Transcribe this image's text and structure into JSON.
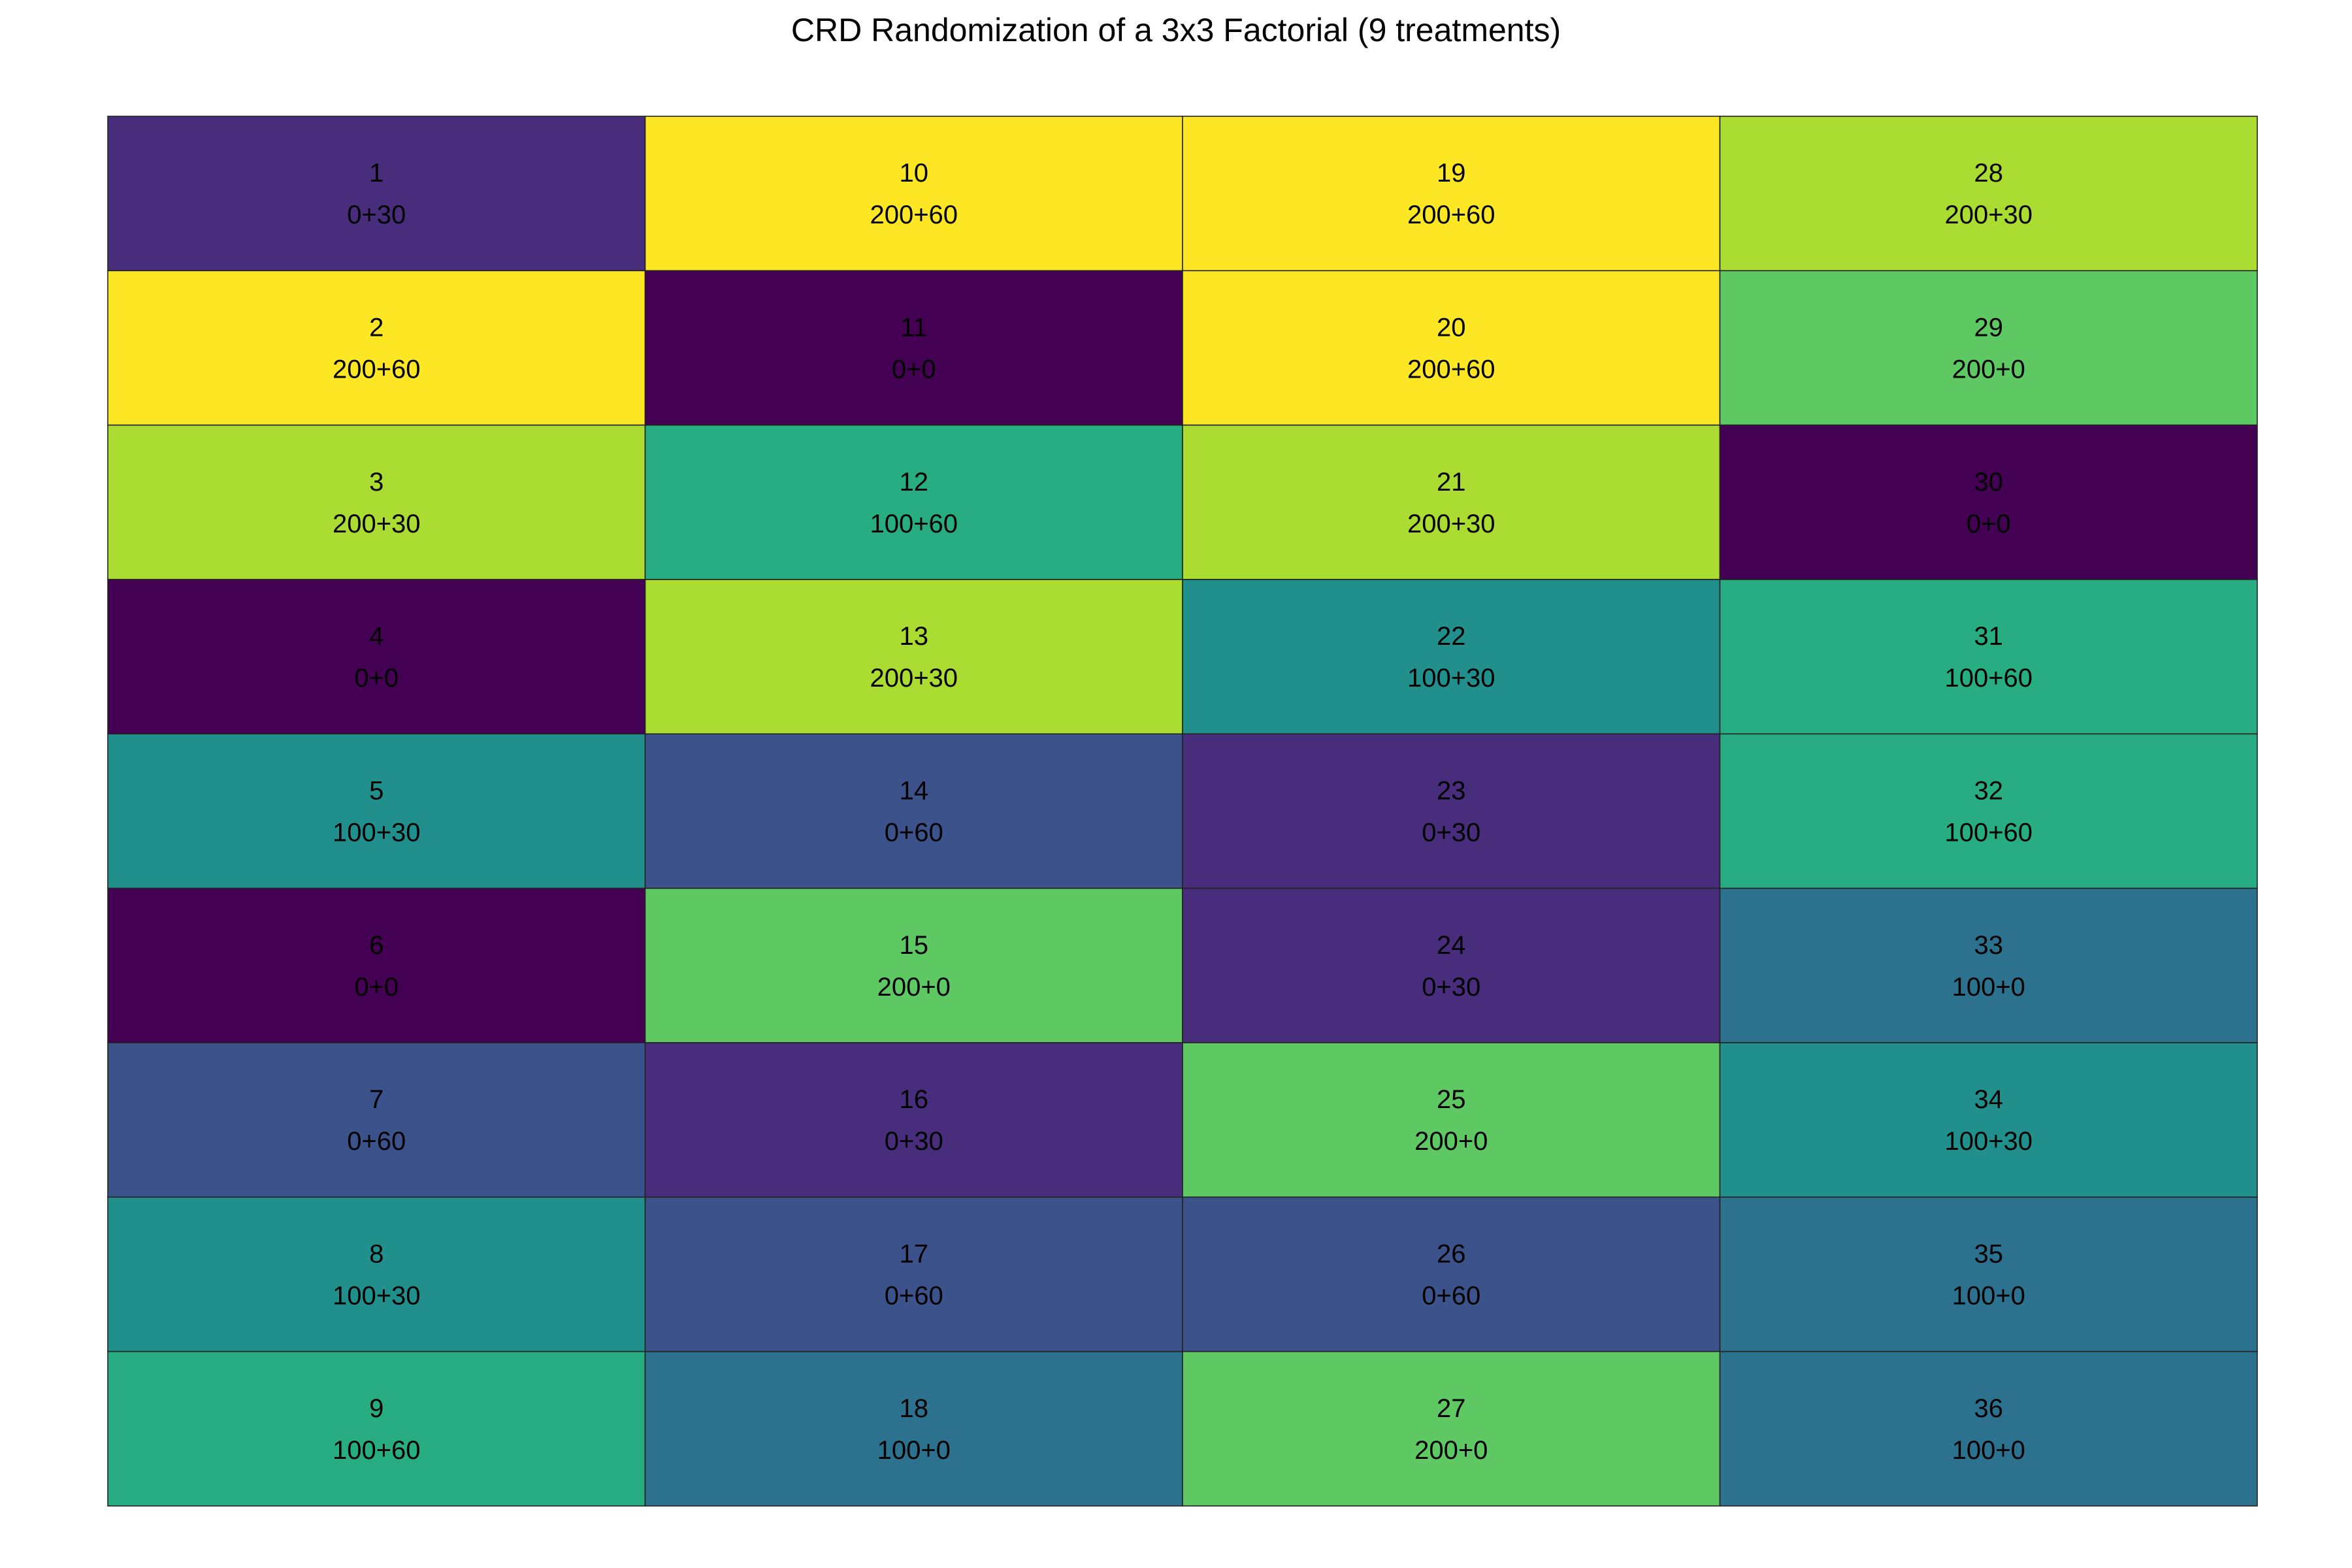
{
  "chart_data": {
    "type": "heatmap",
    "title": "CRD Randomization of a 3x3 Factorial (9 treatments)",
    "xlabel": "",
    "ylabel": "",
    "grid": false,
    "legend": "none",
    "n_rows": 9,
    "n_cols": 4,
    "fill_order": "column-major, top-to-bottom",
    "treatment_colors": {
      "0+0": "#440154",
      "0+30": "#472D7B",
      "0+60": "#3B528B",
      "100+0": "#2C728E",
      "100+30": "#21908C",
      "100+60": "#27AD81",
      "200+0": "#5EC962",
      "200+30": "#AADC32",
      "200+60": "#FDE725"
    },
    "plots": [
      {
        "id": "1",
        "treatment": "0+30"
      },
      {
        "id": "2",
        "treatment": "200+60"
      },
      {
        "id": "3",
        "treatment": "200+30"
      },
      {
        "id": "4",
        "treatment": "0+0"
      },
      {
        "id": "5",
        "treatment": "100+30"
      },
      {
        "id": "6",
        "treatment": "0+0"
      },
      {
        "id": "7",
        "treatment": "0+60"
      },
      {
        "id": "8",
        "treatment": "100+30"
      },
      {
        "id": "9",
        "treatment": "100+60"
      },
      {
        "id": "10",
        "treatment": "200+60"
      },
      {
        "id": "11",
        "treatment": "0+0"
      },
      {
        "id": "12",
        "treatment": "100+60"
      },
      {
        "id": "13",
        "treatment": "200+30"
      },
      {
        "id": "14",
        "treatment": "0+60"
      },
      {
        "id": "15",
        "treatment": "200+0"
      },
      {
        "id": "16",
        "treatment": "0+30"
      },
      {
        "id": "17",
        "treatment": "0+60"
      },
      {
        "id": "18",
        "treatment": "100+0"
      },
      {
        "id": "19",
        "treatment": "200+60"
      },
      {
        "id": "20",
        "treatment": "200+60"
      },
      {
        "id": "21",
        "treatment": "200+30"
      },
      {
        "id": "22",
        "treatment": "100+30"
      },
      {
        "id": "23",
        "treatment": "0+30"
      },
      {
        "id": "24",
        "treatment": "0+30"
      },
      {
        "id": "25",
        "treatment": "200+0"
      },
      {
        "id": "26",
        "treatment": "0+60"
      },
      {
        "id": "27",
        "treatment": "200+0"
      },
      {
        "id": "28",
        "treatment": "200+30"
      },
      {
        "id": "29",
        "treatment": "200+0"
      },
      {
        "id": "30",
        "treatment": "0+0"
      },
      {
        "id": "31",
        "treatment": "100+60"
      },
      {
        "id": "32",
        "treatment": "100+60"
      },
      {
        "id": "33",
        "treatment": "100+0"
      },
      {
        "id": "34",
        "treatment": "100+30"
      },
      {
        "id": "35",
        "treatment": "100+0"
      },
      {
        "id": "36",
        "treatment": "100+0"
      }
    ]
  }
}
